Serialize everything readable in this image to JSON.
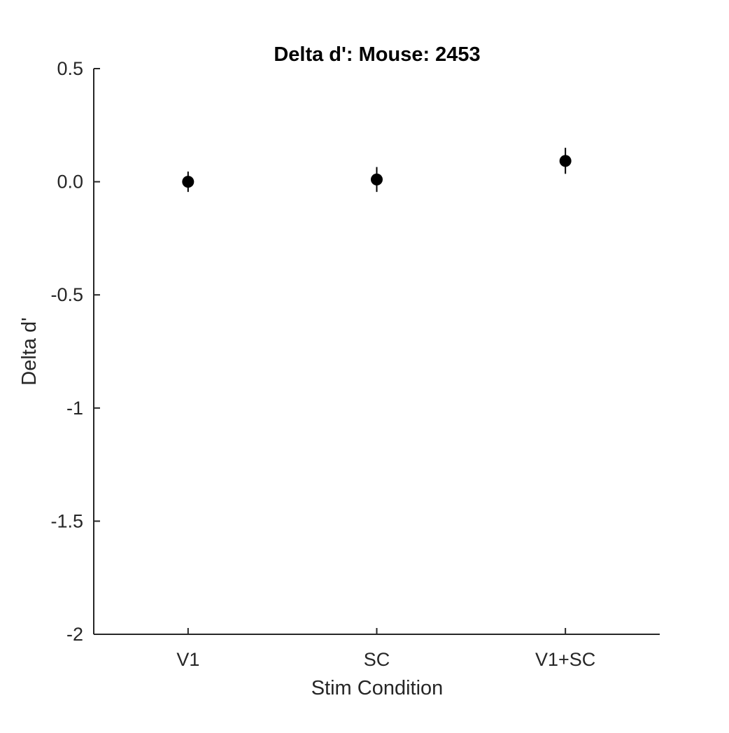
{
  "chart_data": {
    "type": "scatter",
    "title": "Delta d': Mouse: 2453",
    "xlabel": "Stim Condition",
    "ylabel": "Delta d'",
    "categories": [
      "V1",
      "SC",
      "V1+SC"
    ],
    "ylim": [
      -2,
      0.5
    ],
    "yticks": [
      0.5,
      0.0,
      -0.5,
      -1,
      -1.5,
      -2
    ],
    "ytick_labels": [
      "0.5",
      "0.0",
      "-0.5",
      "-1",
      "-1.5",
      "-2"
    ],
    "grid": false,
    "legend": "none",
    "series": [
      {
        "values": [
          0.0,
          0.01,
          0.092
        ],
        "error_low": [
          -0.045,
          -0.045,
          0.035
        ],
        "error_high": [
          0.045,
          0.065,
          0.15
        ],
        "marker": "filled-circle",
        "color": "#000000"
      }
    ]
  }
}
